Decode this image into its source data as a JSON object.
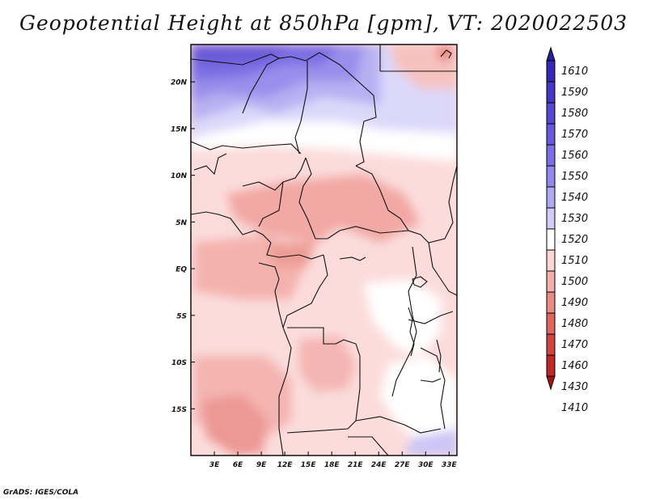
{
  "title": "Geopotential Height at 850hPa [gpm], VT: 2020022503",
  "credit": "GrADS: IGES/COLA",
  "map": {
    "lat_labels": [
      "20N",
      "15N",
      "10N",
      "5N",
      "EQ",
      "5S",
      "10S",
      "15S"
    ],
    "lon_labels": [
      "3E",
      "6E",
      "9E",
      "12E",
      "15E",
      "18E",
      "21E",
      "24E",
      "27E",
      "30E",
      "33E"
    ],
    "lon_range": [
      0,
      34
    ],
    "lat_range": [
      -20,
      24
    ]
  },
  "colorbar": {
    "levels": [
      "1610",
      "1590",
      "1580",
      "1570",
      "1560",
      "1550",
      "1540",
      "1530",
      "1520",
      "1510",
      "1500",
      "1490",
      "1480",
      "1470",
      "1460",
      "1430",
      "1410"
    ],
    "colors": [
      "#2a1ea0",
      "#3628b4",
      "#4636c4",
      "#5646d0",
      "#6858dc",
      "#7c6ee4",
      "#9488ec",
      "#b0a8f2",
      "#d2ccf8",
      "#ffffff",
      "#fbd6d4",
      "#f4b0ac",
      "#ea8c86",
      "#de6660",
      "#d04440",
      "#bf2a26",
      "#a41412"
    ]
  }
}
